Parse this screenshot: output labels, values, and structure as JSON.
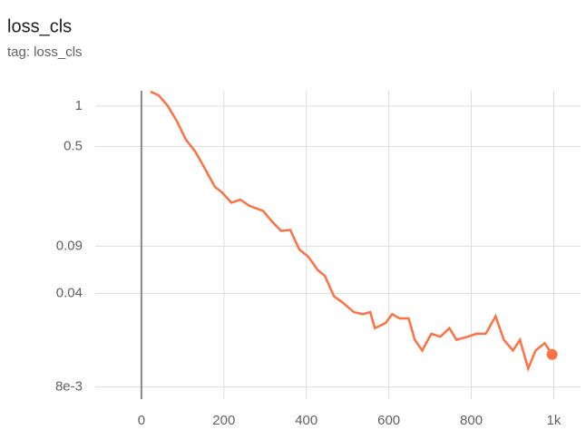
{
  "chart_data": {
    "type": "line",
    "title": "loss_cls",
    "subtitle": "tag: loss_cls",
    "x": [
      22,
      42,
      64,
      86,
      108,
      130,
      152,
      178,
      196,
      218,
      240,
      262,
      295,
      317,
      339,
      361,
      383,
      405,
      427,
      445,
      467,
      489,
      515,
      537,
      555,
      566,
      592,
      608,
      626,
      648,
      663,
      681,
      703,
      725,
      747,
      764,
      791,
      813,
      835,
      859,
      879,
      901,
      918,
      938,
      956,
      978,
      996
    ],
    "series": [
      {
        "name": "loss_cls",
        "color": "#ff7043",
        "values": [
          1.28,
          1.2,
          1.0,
          0.77,
          0.56,
          0.46,
          0.35,
          0.25,
          0.226,
          0.19,
          0.2,
          0.18,
          0.165,
          0.137,
          0.117,
          0.119,
          0.085,
          0.075,
          0.06,
          0.054,
          0.038,
          0.034,
          0.029,
          0.028,
          0.029,
          0.022,
          0.024,
          0.028,
          0.026,
          0.026,
          0.018,
          0.015,
          0.02,
          0.019,
          0.022,
          0.018,
          0.019,
          0.02,
          0.02,
          0.027,
          0.018,
          0.015,
          0.018,
          0.011,
          0.015,
          0.017,
          0.014
        ]
      }
    ],
    "xlim": [
      -112,
      1065
    ],
    "xticks": [
      0,
      200,
      400,
      600,
      800,
      {
        "value": 1000,
        "label": "1k"
      }
    ],
    "ylim": [
      0.0065,
      1.3
    ],
    "yticks": [
      1,
      0.5,
      0.09,
      0.04,
      {
        "value": 0.008,
        "label": "8e-3"
      }
    ],
    "log_y": true,
    "grid": true
  }
}
